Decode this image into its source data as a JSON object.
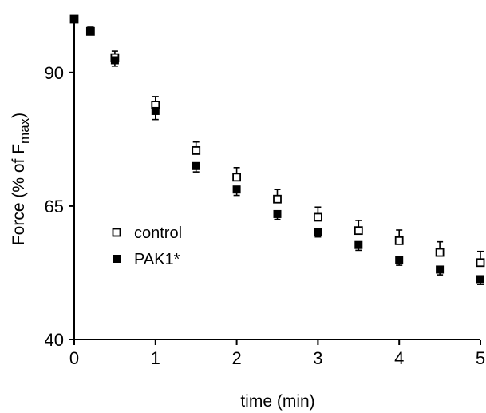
{
  "chart_data": {
    "type": "scatter",
    "xlabel": "time (min)",
    "ylabel": {
      "prefix": "Force (% of F",
      "subscript": "max",
      "suffix": ")"
    },
    "xlim": [
      0,
      5
    ],
    "ylim": [
      40,
      100
    ],
    "xticks": [
      "0",
      "1",
      "2",
      "3",
      "4",
      "5"
    ],
    "yticks": [
      "40",
      "65",
      "90"
    ],
    "grid": false,
    "legend_position": "middle-left",
    "series": [
      {
        "name": "control",
        "marker": "open-square",
        "color": "#000000",
        "x": [
          0,
          0.2,
          0.5,
          1,
          1.5,
          2,
          2.5,
          3,
          3.5,
          4,
          4.5,
          5
        ],
        "y": [
          100,
          97.7,
          92.8,
          83.9,
          75.4,
          70.4,
          66.3,
          62.9,
          60.4,
          58.5,
          56.3,
          54.4
        ],
        "err": [
          0.3,
          0.8,
          1.2,
          1.6,
          1.6,
          1.8,
          1.8,
          1.9,
          1.9,
          2.0,
          2.0,
          2.1
        ]
      },
      {
        "name": "PAK1*",
        "marker": "filled-square",
        "color": "#000000",
        "x": [
          0,
          0.2,
          0.5,
          1,
          1.5,
          2,
          2.5,
          3,
          3.5,
          4,
          4.5,
          5
        ],
        "y": [
          100,
          97.8,
          92.3,
          82.8,
          72.5,
          68.1,
          63.5,
          60.2,
          57.7,
          54.9,
          53.1,
          51.3
        ],
        "err": [
          0.3,
          0.6,
          1.1,
          1.6,
          1.1,
          1.1,
          1.0,
          1.0,
          1.0,
          1.0,
          1.0,
          1.0
        ]
      }
    ]
  }
}
